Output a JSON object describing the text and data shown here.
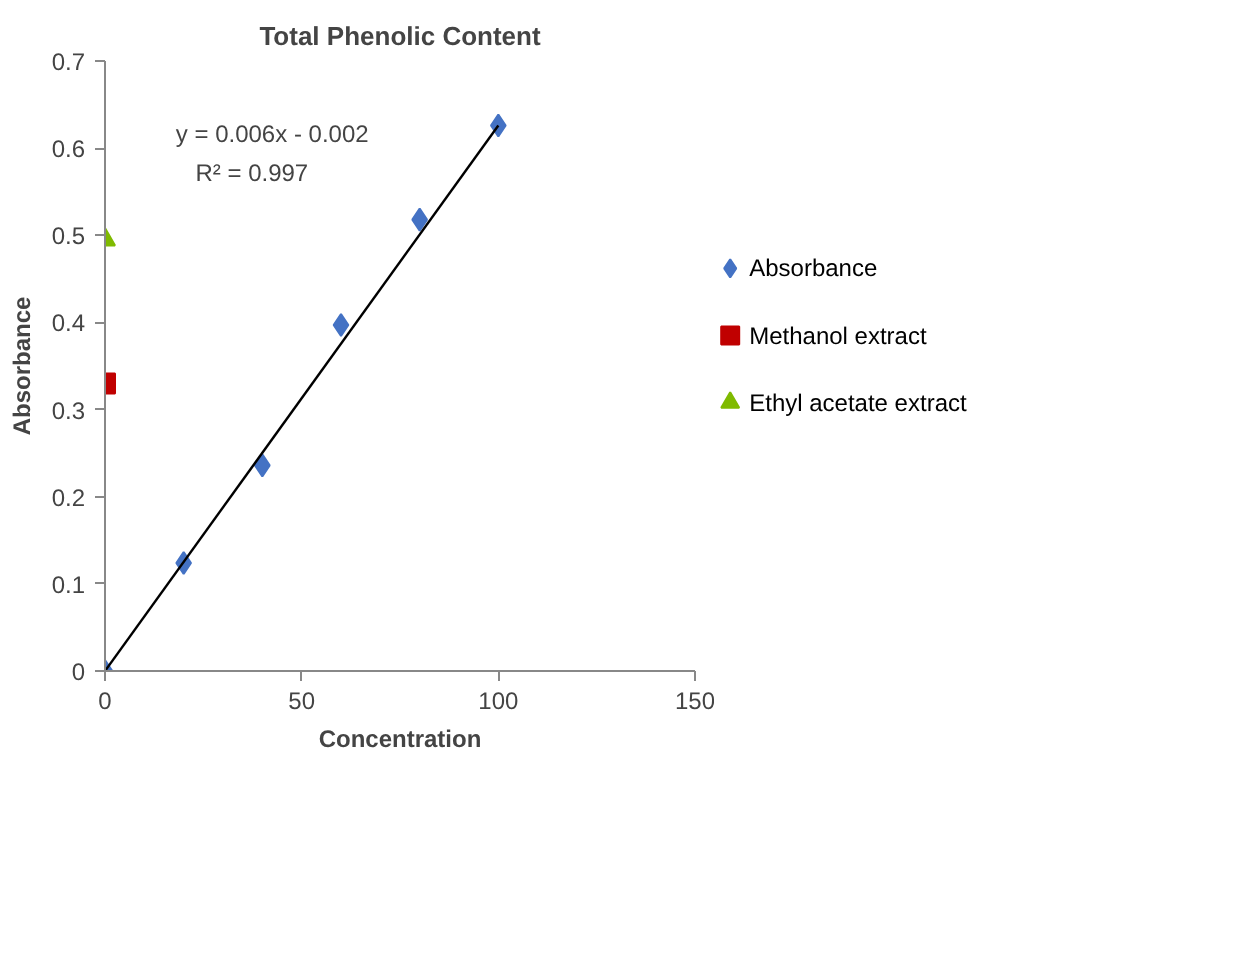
{
  "chart_data": {
    "type": "scatter",
    "title": "Total Phenolic Content",
    "xlabel": "Concentration",
    "ylabel": "Absorbance",
    "xlim": [
      0,
      150
    ],
    "xticks": [
      0,
      50,
      100,
      150
    ],
    "ylim": [
      0,
      0.7
    ],
    "yticks": [
      0,
      0.1,
      0.2,
      0.3,
      0.4,
      0.5,
      0.6,
      0.7
    ],
    "grid": false,
    "legend": "right",
    "annotations": [
      "y = 0.006x - 0.002",
      "R² = 0.997"
    ],
    "series": [
      {
        "name": "Absorbance",
        "marker": "diamond",
        "color": "#4472c4",
        "x": [
          0,
          20,
          40,
          60,
          80,
          100
        ],
        "values": [
          0,
          0.124,
          0.236,
          0.397,
          0.518,
          0.626
        ]
      },
      {
        "name": "Methanol extract",
        "marker": "square",
        "color": "#c00000",
        "x": [
          0
        ],
        "values": [
          0.33
        ]
      },
      {
        "name": "Ethyl acetate extract",
        "marker": "triangle",
        "color": "#7fba00",
        "x": [
          0
        ],
        "values": [
          0.495
        ]
      },
      {
        "type": "line",
        "color": "#000000",
        "x": [
          0,
          100
        ],
        "values": [
          0,
          0.626
        ]
      }
    ]
  }
}
